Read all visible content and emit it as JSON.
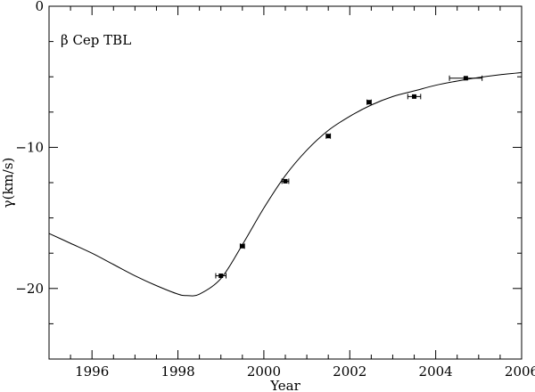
{
  "chart_data": {
    "type": "scatter",
    "title": "",
    "annotation": "β Cep  TBL",
    "xlabel": "Year",
    "ylabel": "γ(km/s)",
    "xlim": [
      1995,
      2006
    ],
    "ylim": [
      -25,
      0
    ],
    "x_ticks": [
      1996,
      1998,
      2000,
      2002,
      2004,
      2006
    ],
    "x_tick_labels": [
      "1996",
      "1998",
      "2000",
      "2002",
      "2004",
      "2006"
    ],
    "y_ticks": [
      0,
      -10,
      -20
    ],
    "y_tick_labels": [
      "0",
      "−10",
      "−20"
    ],
    "grid": false,
    "legend": "none",
    "points": [
      {
        "x": 1999.0,
        "y": -19.1,
        "xerr": 0.12
      },
      {
        "x": 1999.5,
        "y": -17.0,
        "xerr": 0.05
      },
      {
        "x": 2000.5,
        "y": -12.4,
        "xerr": 0.08
      },
      {
        "x": 2001.5,
        "y": -9.2,
        "xerr": 0.05
      },
      {
        "x": 2002.45,
        "y": -6.8,
        "xerr": 0.05
      },
      {
        "x": 2003.5,
        "y": -6.4,
        "xerr": 0.15
      },
      {
        "x": 2004.7,
        "y": -5.1,
        "xerr": 0.38
      }
    ],
    "fit_curve": {
      "x": [
        1995.0,
        1995.5,
        1996.0,
        1996.5,
        1997.0,
        1997.5,
        1998.0,
        1998.2,
        1998.5,
        1999.0,
        1999.5,
        2000.0,
        2000.5,
        2001.0,
        2001.5,
        2002.0,
        2002.5,
        2003.0,
        2003.5,
        2004.0,
        2004.5,
        2005.0,
        2005.5,
        2006.0
      ],
      "y": [
        -16.1,
        -16.8,
        -17.5,
        -18.3,
        -19.1,
        -19.8,
        -20.4,
        -20.5,
        -20.4,
        -19.3,
        -16.9,
        -14.3,
        -12.0,
        -10.2,
        -8.8,
        -7.8,
        -7.0,
        -6.4,
        -6.0,
        -5.6,
        -5.3,
        -5.05,
        -4.85,
        -4.7
      ]
    },
    "colors": {
      "axis": "#000000",
      "marker": "#000000",
      "curve": "#000000"
    }
  }
}
